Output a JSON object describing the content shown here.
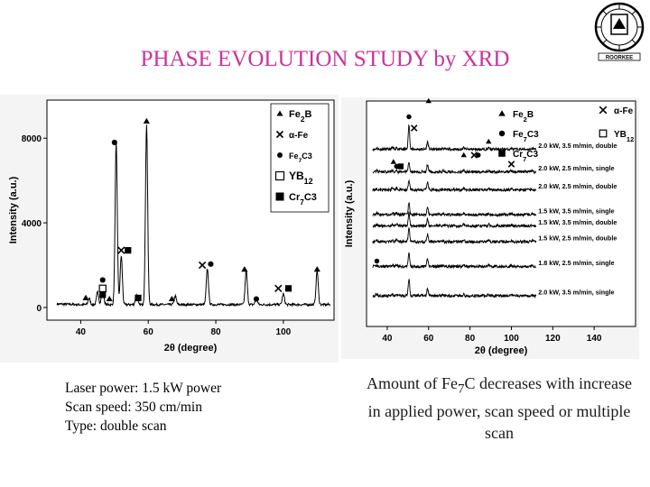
{
  "title": "PHASE EVOLUTION STUDY by XRD",
  "logo": {
    "label": "ROORKEE",
    "icon": "institute-seal-icon"
  },
  "colors": {
    "title": "#cc3399",
    "trace": "#000000"
  },
  "chart_data": [
    {
      "type": "line",
      "xlabel": "2θ (degree)",
      "ylabel": "Intensity (a.u.)",
      "xlim": [
        30,
        115
      ],
      "ylim": [
        -600,
        9800
      ],
      "x_ticks": [
        40,
        60,
        80,
        100
      ],
      "y_ticks": [
        0,
        4000,
        8000
      ],
      "legend_position": "top-right",
      "legend": [
        {
          "symbol": "triangle",
          "label": "Fe2B",
          "main": "Fe",
          "sub": "2",
          "tail": "B"
        },
        {
          "symbol": "cross",
          "label": "α-Fe",
          "main": "α-Fe",
          "sub": "",
          "tail": ""
        },
        {
          "symbol": "circle",
          "label": "Fe7C3",
          "main": "Fe",
          "sub": "7",
          "tail": "C3"
        },
        {
          "symbol": "open-square",
          "label": "YB12",
          "main": "YB",
          "sub": "12",
          "tail": ""
        },
        {
          "symbol": "filled-square",
          "label": "Cr7C3",
          "main": "Cr",
          "sub": "7",
          "tail": "C3"
        }
      ],
      "peaks": [
        {
          "x": 42.5,
          "y": 300
        },
        {
          "x": 45.0,
          "y": 600
        },
        {
          "x": 46.5,
          "y": 900
        },
        {
          "x": 50.5,
          "y": 7600
        },
        {
          "x": 52.0,
          "y": 2300
        },
        {
          "x": 56.5,
          "y": 450
        },
        {
          "x": 59.5,
          "y": 8500
        },
        {
          "x": 68.0,
          "y": 400
        },
        {
          "x": 77.5,
          "y": 1700
        },
        {
          "x": 89.0,
          "y": 1600
        },
        {
          "x": 92.0,
          "y": 300
        },
        {
          "x": 100.0,
          "y": 500
        },
        {
          "x": 110.0,
          "y": 1600
        }
      ],
      "markers": [
        {
          "symbol": "triangle",
          "x": 41.5,
          "y": 450
        },
        {
          "symbol": "circle",
          "x": 46.5,
          "y": 1300
        },
        {
          "symbol": "open-square",
          "x": 46.5,
          "y": 900
        },
        {
          "symbol": "filled-square",
          "x": 46.5,
          "y": 600
        },
        {
          "symbol": "triangle",
          "x": 48.5,
          "y": 400
        },
        {
          "symbol": "circle",
          "x": 50.0,
          "y": 7800
        },
        {
          "symbol": "cross",
          "x": 52.0,
          "y": 2700
        },
        {
          "symbol": "filled-square",
          "x": 54.0,
          "y": 2700
        },
        {
          "symbol": "filled-square",
          "x": 57.0,
          "y": 450
        },
        {
          "symbol": "triangle",
          "x": 59.5,
          "y": 8800
        },
        {
          "symbol": "triangle",
          "x": 67.0,
          "y": 400
        },
        {
          "symbol": "cross",
          "x": 76.0,
          "y": 2000
        },
        {
          "symbol": "circle",
          "x": 78.5,
          "y": 2050
        },
        {
          "symbol": "triangle",
          "x": 88.5,
          "y": 1800
        },
        {
          "symbol": "circle",
          "x": 92.0,
          "y": 400
        },
        {
          "symbol": "cross",
          "x": 98.5,
          "y": 900
        },
        {
          "symbol": "filled-square",
          "x": 101.5,
          "y": 900
        },
        {
          "symbol": "triangle",
          "x": 110.0,
          "y": 1800
        }
      ]
    },
    {
      "type": "line",
      "xlabel": "2θ (degree)",
      "ylabel": "Intensity (a.u.)",
      "xlim": [
        30,
        160
      ],
      "ylim": [
        0,
        1
      ],
      "x_ticks": [
        40,
        60,
        80,
        100,
        120,
        140
      ],
      "legend_position": "top-right",
      "legend": [
        {
          "symbol": "triangle",
          "label": "Fe2B",
          "main": "Fe",
          "sub": "2",
          "tail": "B"
        },
        {
          "symbol": "cross",
          "label": "α-Fe",
          "main": "α-Fe",
          "sub": "",
          "tail": ""
        },
        {
          "symbol": "circle",
          "label": "Fe7C3",
          "main": "Fe",
          "sub": "7",
          "tail": "C3"
        },
        {
          "symbol": "open-square",
          "label": "YB12",
          "main": "YB",
          "sub": "12",
          "tail": ""
        },
        {
          "symbol": "filled-square",
          "label": "Cr7C3",
          "main": "Cr",
          "sub": "7",
          "tail": "C3"
        }
      ],
      "series": [
        {
          "name": "2.0 kW, 3.5 m/min, double",
          "offset": 0.78,
          "main_peak": 0.9
        },
        {
          "name": "2.0 kW, 2.5 m/min, single",
          "offset": 0.68,
          "main_peak": 0.35
        },
        {
          "name": "2.0 kW, 2.5 m/min, double",
          "offset": 0.6,
          "main_peak": 0.35
        },
        {
          "name": "1.5 kW, 3.5 m/min, single",
          "offset": 0.49,
          "main_peak": 0.45
        },
        {
          "name": "1.5 kW, 3.5 m/min, double",
          "offset": 0.44,
          "main_peak": 0.5
        },
        {
          "name": "1.5 kW, 2.5 m/min, double",
          "offset": 0.37,
          "main_peak": 0.5
        },
        {
          "name": "1.8 kW, 2.5 m/min, single",
          "offset": 0.26,
          "main_peak": 0.5
        },
        {
          "name": "2.0 kW, 3.5 m/min, single",
          "offset": 0.13,
          "main_peak": 0.6
        }
      ],
      "peaks_2theta": [
        35,
        42.5,
        44.5,
        50.5,
        59.5,
        67,
        77,
        89,
        100,
        110
      ],
      "markers": [
        {
          "symbol": "circle",
          "x": 50.5,
          "y": 0.93
        },
        {
          "symbol": "cross",
          "x": 53.0,
          "y": 0.88
        },
        {
          "symbol": "triangle",
          "x": 60.0,
          "y": 1.0
        },
        {
          "symbol": "triangle",
          "x": 43.0,
          "y": 0.73
        },
        {
          "symbol": "circle",
          "x": 44.5,
          "y": 0.71
        },
        {
          "symbol": "filled-square",
          "x": 46.5,
          "y": 0.71
        },
        {
          "symbol": "triangle",
          "x": 77.0,
          "y": 0.76
        },
        {
          "symbol": "cross",
          "x": 82.0,
          "y": 0.76
        },
        {
          "symbol": "circle",
          "x": 84.0,
          "y": 0.76
        },
        {
          "symbol": "triangle",
          "x": 89.0,
          "y": 0.82
        },
        {
          "symbol": "cross",
          "x": 100.0,
          "y": 0.72
        },
        {
          "symbol": "circle",
          "x": 35.0,
          "y": 0.29
        }
      ]
    }
  ],
  "left_caption": [
    "Laser power: 1.5 kW power",
    "Scan speed: 350 cm/min",
    "Type: double scan"
  ],
  "right_caption": {
    "before": "Amount of Fe",
    "sub": "7",
    "after": "C decreases with increase in applied power, scan speed or multiple scan"
  }
}
